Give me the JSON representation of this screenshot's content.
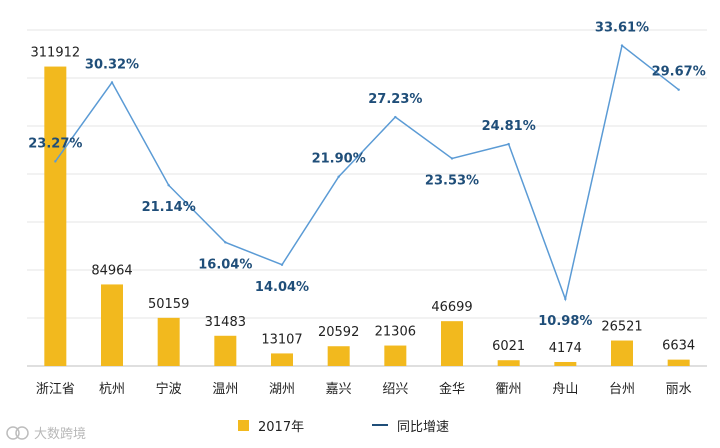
{
  "chart_data": {
    "type": "bar",
    "categories": [
      "浙江省",
      "杭州",
      "宁波",
      "温州",
      "湖州",
      "嘉兴",
      "绍兴",
      "金华",
      "衢州",
      "舟山",
      "台州",
      "丽水"
    ],
    "series": [
      {
        "name": "2017年",
        "type": "bar",
        "values": [
          311912,
          84964,
          50159,
          31483,
          13107,
          20592,
          21306,
          46699,
          6021,
          4174,
          26521,
          6634
        ],
        "labels": [
          "311912",
          "84964",
          "50159",
          "31483",
          "13107",
          "20592",
          "21306",
          "46699",
          "6021",
          "4174",
          "26521",
          "6634"
        ],
        "color": "#f2b91e"
      },
      {
        "name": "同比增速",
        "type": "line",
        "values": [
          23.27,
          30.32,
          21.14,
          16.04,
          14.04,
          21.9,
          27.23,
          23.53,
          24.81,
          10.98,
          33.61,
          29.67
        ],
        "labels": [
          "23.27%",
          "30.32%",
          "21.14%",
          "16.04%",
          "14.04%",
          "21.90%",
          "27.23%",
          "23.53%",
          "24.81%",
          "10.98%",
          "33.61%",
          "29.67%"
        ],
        "color": "#5b9bd5",
        "label_color": "#1f4e79"
      }
    ],
    "bar_ylim": [
      0,
      350000
    ],
    "line_ylim": [
      5,
      35
    ],
    "grid": true,
    "legend_position": "bottom"
  },
  "watermark": {
    "text": "大数跨境",
    "icon": "brand-logo-icon"
  }
}
